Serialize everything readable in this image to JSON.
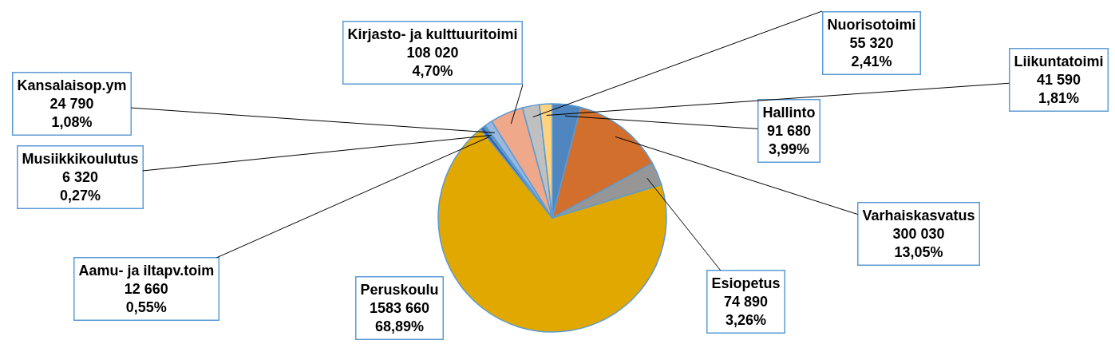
{
  "chart_data": {
    "type": "pie",
    "categories": [
      "Hallinto",
      "Varhaiskasvatus",
      "Esiopetus",
      "Peruskoulu",
      "Aamu- ja iltapv.toim",
      "Musiikkikoulutus",
      "Kansalaisop.ym",
      "Kirjasto- ja kulttuuritoimi",
      "Nuorisotoimi",
      "Liikuntatoimi"
    ],
    "values": [
      91680,
      300030,
      74890,
      1583660,
      12660,
      6320,
      24790,
      108020,
      55320,
      41590
    ],
    "colors": [
      "#4f86c0",
      "#d26f2c",
      "#969696",
      "#e0a800",
      "#3a5ea8",
      "#5d9640",
      "#9ab8e0",
      "#f0a88a",
      "#c0c0c0",
      "#ffd280"
    ],
    "value_labels": [
      "91 680\n3,99%",
      "300 030\n13,05%",
      "74 890\n3,26%",
      "1583 660\n68,89%",
      "12 660\n0,55%",
      "6 320\n0,27%",
      "24 790\n1,08%",
      "108 020\n4,70%",
      "55 320\n2,41%",
      "41 590\n1,81%"
    ]
  }
}
